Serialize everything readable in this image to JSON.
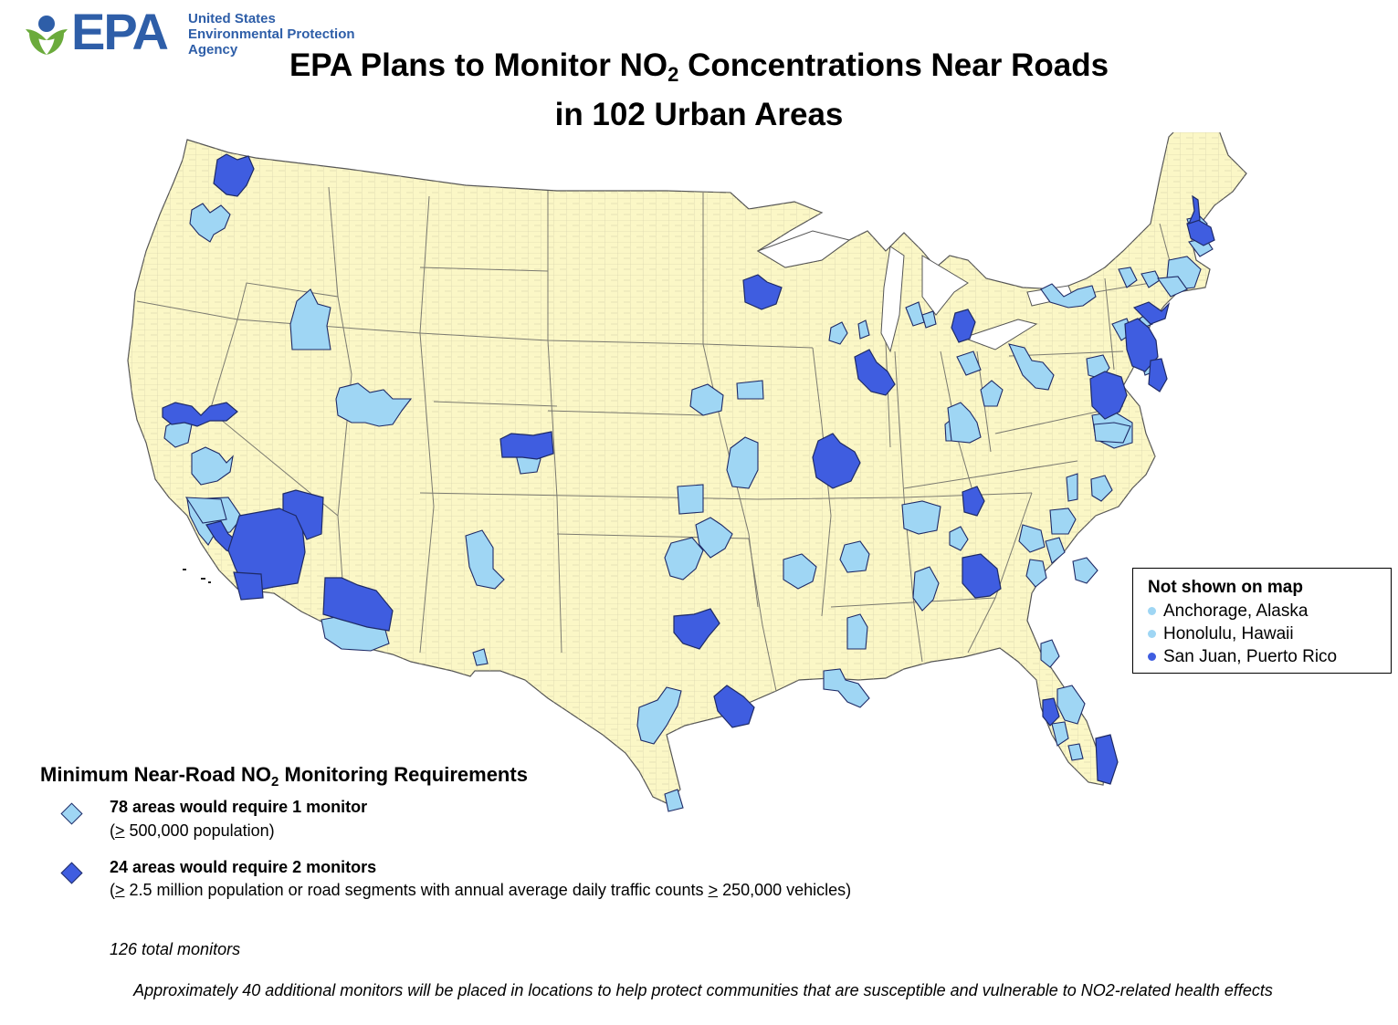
{
  "agency": {
    "acronym": "EPA",
    "name_lines": [
      "United States",
      "Environmental Protection",
      "Agency"
    ]
  },
  "title": {
    "line1_pre": "EPA Plans to Monitor NO",
    "line1_sub": "2",
    "line1_post": " Concentrations Near Roads",
    "line2": "in 102 Urban Areas"
  },
  "colors": {
    "land": "#fbf7c6",
    "county_line": "#c9c6a5",
    "state_line": "#7b7a70",
    "one_monitor": "#9fd6f4",
    "two_monitors": "#3f5de0",
    "outline": "#1e2a66"
  },
  "inset": {
    "heading": "Not shown on map",
    "items": [
      {
        "label": "Anchorage, Alaska",
        "color": "#9fd6f4"
      },
      {
        "label": "Honolulu, Hawaii",
        "color": "#9fd6f4"
      },
      {
        "label": "San Juan, Puerto Rico",
        "color": "#3f5de0"
      }
    ]
  },
  "legend": {
    "title_pre": "Minimum Near-Road NO",
    "title_sub": "2",
    "title_post": " Monitoring Requirements",
    "one": {
      "main": "78 areas would require 1 monitor",
      "sub_open": "(",
      "sub_ge": ">",
      "sub_rest": " 500,000 population)"
    },
    "two": {
      "main": "24 areas would require 2 monitors",
      "sub_open": "(",
      "sub_ge": ">",
      "sub_mid": " 2.5 million population or road segments with annual average daily traffic counts ",
      "sub_ge2": ">",
      "sub_end": " 250,000 vehicles)"
    },
    "total": "126 total monitors"
  },
  "footnote": "Approximately 40 additional monitors will be placed in locations to help protect communities that are susceptible and vulnerable to NO2-related health effects"
}
